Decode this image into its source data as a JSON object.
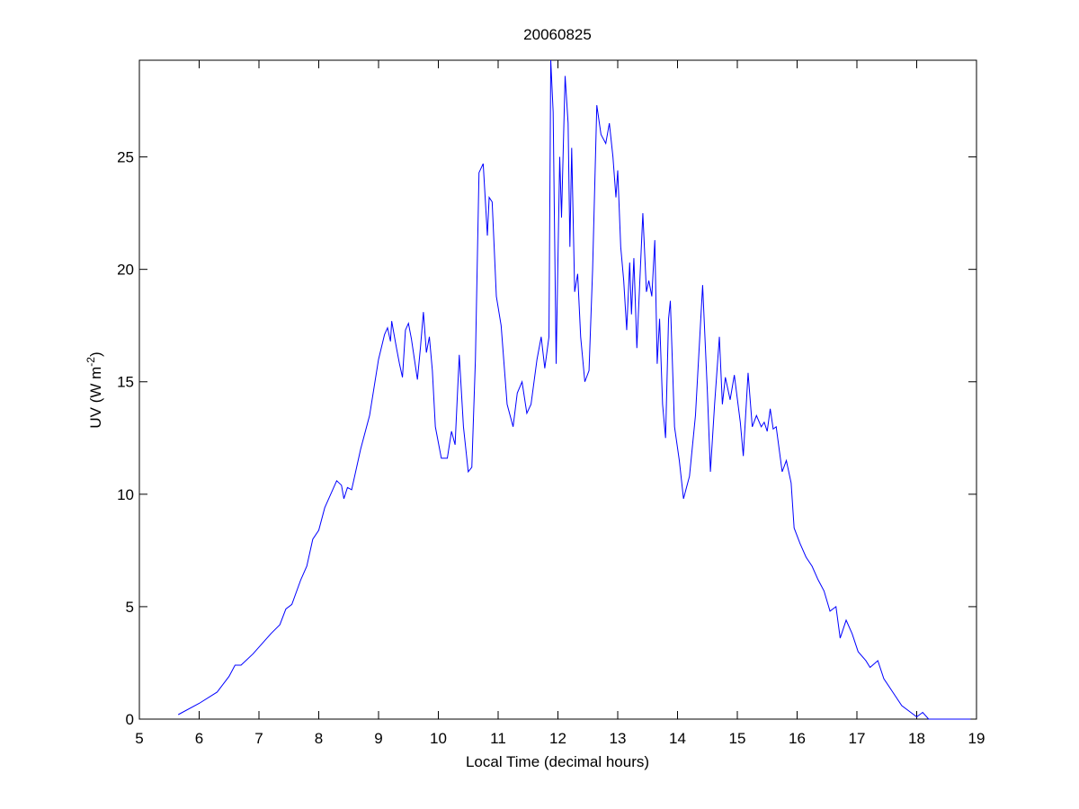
{
  "chart_data": {
    "type": "line",
    "title": "20060825",
    "xlabel": "Local Time (decimal hours)",
    "ylabel": "UV (W m",
    "ylabel_superscript": "-2",
    "ylabel_end": ")",
    "xlim": [
      5,
      19
    ],
    "xticks": [
      5,
      6,
      7,
      8,
      9,
      10,
      11,
      12,
      13,
      14,
      15,
      16,
      17,
      18,
      19
    ],
    "ylim": [
      0,
      29.3
    ],
    "yticks": [
      0,
      5,
      10,
      15,
      20,
      25
    ],
    "grid": false,
    "series": [
      {
        "name": "UV",
        "color": "#0000ff",
        "x": [
          5.65,
          6.0,
          6.3,
          6.5,
          6.6,
          6.7,
          6.9,
          7.1,
          7.2,
          7.35,
          7.45,
          7.55,
          7.7,
          7.8,
          7.9,
          8.0,
          8.1,
          8.2,
          8.3,
          8.38,
          8.42,
          8.48,
          8.55,
          8.7,
          8.85,
          9.0,
          9.1,
          9.15,
          9.2,
          9.22,
          9.3,
          9.35,
          9.4,
          9.45,
          9.5,
          9.55,
          9.6,
          9.65,
          9.7,
          9.75,
          9.8,
          9.85,
          9.9,
          9.95,
          10.05,
          10.15,
          10.22,
          10.28,
          10.35,
          10.42,
          10.5,
          10.56,
          10.62,
          10.68,
          10.75,
          10.82,
          10.85,
          10.9,
          10.97,
          11.05,
          11.15,
          11.25,
          11.32,
          11.4,
          11.48,
          11.55,
          11.65,
          11.72,
          11.78,
          11.85,
          11.88,
          11.92,
          11.97,
          12.03,
          12.06,
          12.12,
          12.17,
          12.2,
          12.23,
          12.28,
          12.33,
          12.38,
          12.45,
          12.52,
          12.58,
          12.65,
          12.72,
          12.8,
          12.86,
          12.92,
          12.97,
          13.0,
          13.05,
          13.1,
          13.15,
          13.2,
          13.23,
          13.27,
          13.32,
          13.37,
          13.42,
          13.48,
          13.52,
          13.57,
          13.62,
          13.66,
          13.7,
          13.75,
          13.8,
          13.85,
          13.88,
          13.95,
          14.03,
          14.1,
          14.2,
          14.3,
          14.42,
          14.5,
          14.55,
          14.62,
          14.7,
          14.75,
          14.8,
          14.88,
          14.95,
          15.05,
          15.1,
          15.18,
          15.25,
          15.32,
          15.4,
          15.45,
          15.5,
          15.55,
          15.6,
          15.65,
          15.75,
          15.82,
          15.9,
          15.95,
          16.05,
          16.15,
          16.25,
          16.35,
          16.45,
          16.55,
          16.65,
          16.72,
          16.82,
          16.92,
          17.02,
          17.15,
          17.22,
          17.35,
          17.45,
          17.6,
          17.75,
          17.9,
          18.0,
          18.1,
          18.2,
          18.5,
          18.9
        ],
        "values": [
          0.2,
          0.7,
          1.2,
          1.9,
          2.4,
          2.4,
          2.9,
          3.5,
          3.8,
          4.2,
          4.9,
          5.1,
          6.2,
          6.8,
          8.0,
          8.4,
          9.4,
          10.0,
          10.6,
          10.4,
          9.8,
          10.3,
          10.2,
          12.0,
          13.5,
          16.0,
          17.1,
          17.4,
          16.8,
          17.7,
          16.5,
          15.8,
          15.2,
          17.3,
          17.6,
          16.9,
          16.0,
          15.1,
          16.5,
          18.1,
          16.3,
          17.0,
          15.5,
          13.0,
          11.6,
          11.6,
          12.8,
          12.2,
          16.2,
          13.0,
          11.0,
          11.2,
          16.0,
          24.3,
          24.7,
          21.5,
          23.2,
          23.0,
          18.8,
          17.5,
          14.0,
          13.0,
          14.5,
          15.0,
          13.6,
          14.0,
          16.0,
          17.0,
          15.6,
          17.0,
          29.3,
          27.0,
          15.8,
          25.0,
          22.3,
          28.6,
          26.5,
          21.0,
          25.4,
          19.0,
          19.8,
          17.0,
          15.0,
          15.5,
          20.0,
          27.3,
          26.0,
          25.6,
          26.5,
          25.0,
          23.2,
          24.4,
          21.0,
          19.5,
          17.3,
          20.3,
          18.0,
          20.5,
          16.5,
          19.5,
          22.5,
          19.0,
          19.5,
          18.8,
          21.3,
          15.8,
          17.8,
          14.0,
          12.5,
          17.8,
          18.6,
          13.0,
          11.5,
          9.8,
          10.8,
          13.5,
          19.3,
          14.5,
          11.0,
          14.0,
          17.0,
          14.0,
          15.2,
          14.2,
          15.3,
          13.2,
          11.7,
          15.4,
          13.0,
          13.5,
          13.0,
          13.2,
          12.8,
          13.8,
          12.9,
          13.0,
          11.0,
          11.5,
          10.5,
          8.5,
          7.8,
          7.2,
          6.8,
          6.2,
          5.7,
          4.8,
          5.0,
          3.6,
          4.4,
          3.8,
          3.0,
          2.6,
          2.3,
          2.6,
          1.8,
          1.2,
          0.6,
          0.3,
          0.1,
          0.3,
          0.0,
          0.0,
          0.0
        ]
      }
    ]
  }
}
